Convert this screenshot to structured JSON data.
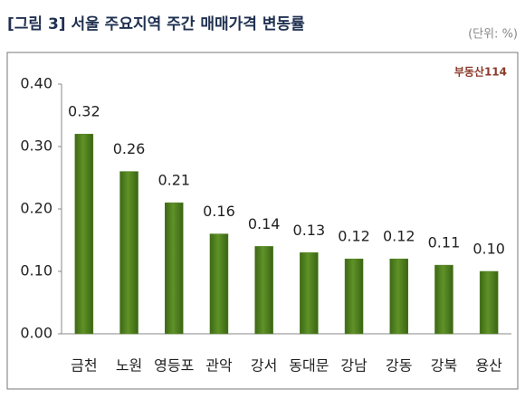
{
  "chart_data": {
    "type": "bar",
    "title": "[그림 3] 서울 주요지역 주간 매매가격 변동률",
    "unit_note": "(단위: %)",
    "logo": "부동산114",
    "categories": [
      "금천",
      "노원",
      "영등포",
      "관악",
      "강서",
      "동대문",
      "강남",
      "강동",
      "강북",
      "용산"
    ],
    "values": [
      0.32,
      0.26,
      0.21,
      0.16,
      0.14,
      0.13,
      0.12,
      0.12,
      0.11,
      0.1
    ],
    "value_labels": [
      "0.32",
      "0.26",
      "0.21",
      "0.16",
      "0.14",
      "0.13",
      "0.12",
      "0.12",
      "0.11",
      "0.10"
    ],
    "color": "#4f7f1f",
    "ylim": [
      0,
      0.4
    ],
    "yticks": [
      {
        "value": 0,
        "label": "0.00"
      },
      {
        "value": 0.1,
        "label": "0.10"
      },
      {
        "value": 0.2,
        "label": "0.20"
      },
      {
        "value": 0.3,
        "label": "0.30"
      },
      {
        "value": 0.4,
        "label": "0.40"
      }
    ],
    "grid": false
  }
}
